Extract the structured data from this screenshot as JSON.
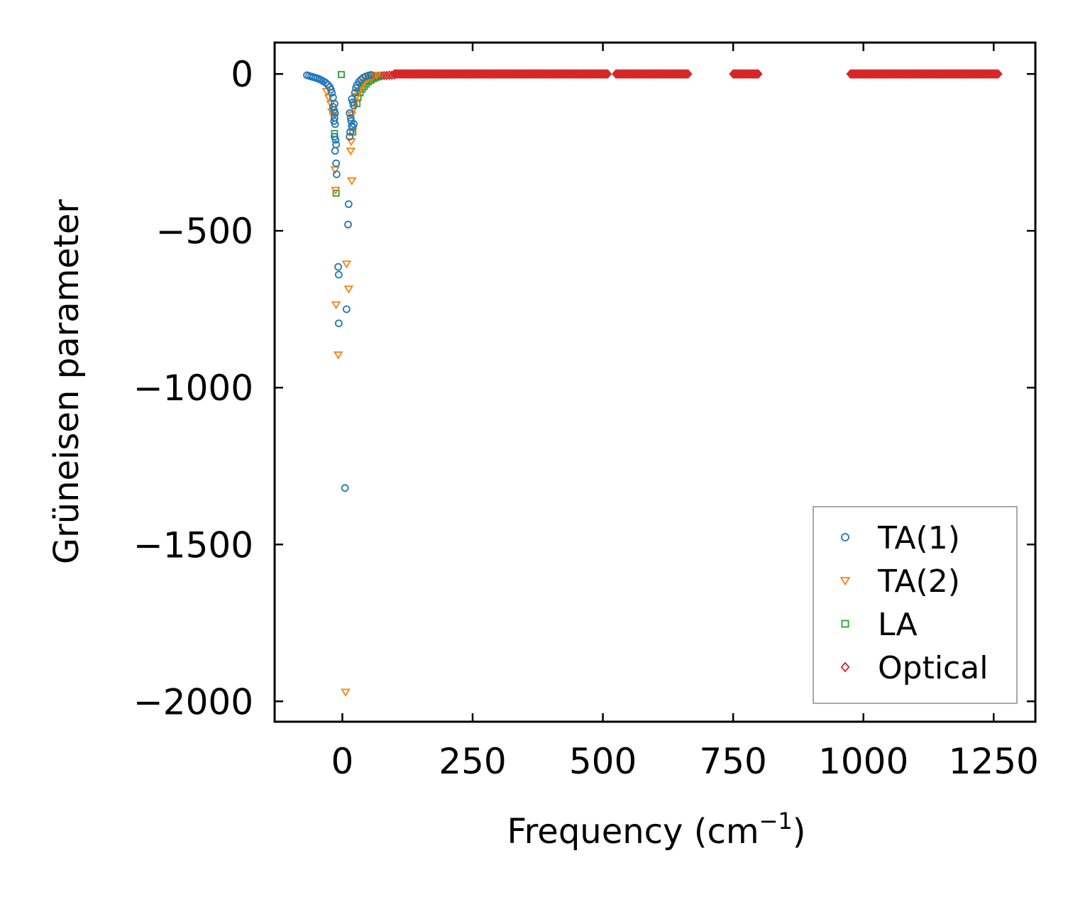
{
  "chart_data": {
    "type": "scatter",
    "xlabel": "Frequency (cm",
    "xlabel_sup": "−1",
    "xlabel_end": ")",
    "ylabel": "Grüneisen parameter",
    "xlim": [
      -130,
      1330
    ],
    "ylim": [
      -2065,
      100
    ],
    "xticks": [
      0,
      250,
      500,
      750,
      1000,
      1250
    ],
    "xtick_labels": [
      "0",
      "250",
      "500",
      "750",
      "1000",
      "1250"
    ],
    "yticks": [
      0,
      -500,
      -1000,
      -1500,
      -2000
    ],
    "ytick_labels": [
      "0",
      "−500",
      "−1000",
      "−1500",
      "−2000"
    ],
    "grid": false,
    "legend": {
      "position": "lower-right"
    },
    "series": [
      {
        "name": "TA(1)",
        "marker": "circle",
        "color": "#1f77b4",
        "points": [
          [
            -68,
            -4
          ],
          [
            -64,
            -6
          ],
          [
            -60,
            -8
          ],
          [
            -56,
            -10
          ],
          [
            -52,
            -12
          ],
          [
            -48,
            -14
          ],
          [
            -44,
            -17
          ],
          [
            -40,
            -20
          ],
          [
            -36,
            -24
          ],
          [
            -32,
            -28
          ],
          [
            -28,
            -34
          ],
          [
            -24,
            -42
          ],
          [
            -22,
            -50
          ],
          [
            -20,
            -60
          ],
          [
            -18,
            -75
          ],
          [
            -15,
            -95
          ],
          [
            -18,
            -105
          ],
          [
            -16,
            -115
          ],
          [
            -14,
            -125
          ],
          [
            -15,
            -140
          ],
          [
            -16,
            -150
          ],
          [
            -14,
            -160
          ],
          [
            -15,
            -200
          ],
          [
            -13,
            -210
          ],
          [
            -12,
            -225
          ],
          [
            -14,
            -245
          ],
          [
            -12,
            -285
          ],
          [
            -11,
            -320
          ],
          [
            -8,
            -615
          ],
          [
            -7,
            -640
          ],
          [
            -7,
            -795
          ],
          [
            8,
            -750
          ],
          [
            12,
            -415
          ],
          [
            11,
            -480
          ],
          [
            5,
            -1320
          ],
          [
            14,
            -125
          ],
          [
            16,
            -140
          ],
          [
            17,
            -150
          ],
          [
            18,
            -165
          ],
          [
            20,
            -170
          ],
          [
            22,
            -160
          ],
          [
            15,
            -185
          ],
          [
            14,
            -200
          ],
          [
            18,
            -80
          ],
          [
            20,
            -90
          ],
          [
            22,
            -100
          ],
          [
            24,
            -60
          ],
          [
            26,
            -45
          ],
          [
            28,
            -35
          ],
          [
            32,
            -25
          ],
          [
            36,
            -18
          ],
          [
            40,
            -12
          ],
          [
            45,
            -8
          ],
          [
            50,
            -5
          ],
          [
            55,
            -3
          ]
        ]
      },
      {
        "name": "TA(2)",
        "marker": "triangle",
        "color": "#ff7f0e",
        "points": [
          [
            -30,
            -55
          ],
          [
            -26,
            -75
          ],
          [
            -22,
            -95
          ],
          [
            -20,
            -120
          ],
          [
            -17,
            -135
          ],
          [
            -14,
            -305
          ],
          [
            -13,
            -370
          ],
          [
            -12,
            -735
          ],
          [
            -8,
            -895
          ],
          [
            8,
            -605
          ],
          [
            12,
            -685
          ],
          [
            6,
            -1970
          ],
          [
            18,
            -340
          ],
          [
            16,
            -245
          ],
          [
            17,
            -215
          ],
          [
            19,
            -185
          ],
          [
            18,
            -130
          ],
          [
            22,
            -110
          ],
          [
            25,
            -90
          ],
          [
            28,
            -70
          ],
          [
            32,
            -55
          ],
          [
            36,
            -40
          ],
          [
            40,
            -30
          ],
          [
            45,
            -20
          ],
          [
            50,
            -12
          ],
          [
            55,
            -8
          ],
          [
            60,
            -5
          ],
          [
            66,
            -3
          ]
        ]
      },
      {
        "name": "LA",
        "marker": "square",
        "color": "#2ca02c",
        "points": [
          [
            -15,
            -190
          ],
          [
            -12,
            -380
          ],
          [
            20,
            -185
          ],
          [
            28,
            -95
          ],
          [
            30,
            -75
          ],
          [
            34,
            -60
          ],
          [
            38,
            -48
          ],
          [
            42,
            -40
          ],
          [
            46,
            -32
          ],
          [
            50,
            -25
          ],
          [
            55,
            -20
          ],
          [
            60,
            -15
          ],
          [
            65,
            -11
          ],
          [
            70,
            -8
          ],
          [
            -2,
            -2
          ]
        ]
      },
      {
        "name": "Optical",
        "marker": "diamond",
        "color": "#d62728",
        "points": [
          [
            50,
            -12
          ],
          [
            55,
            -10
          ],
          [
            60,
            -9
          ],
          [
            65,
            -8
          ],
          [
            70,
            -7
          ],
          [
            75,
            -6
          ],
          [
            80,
            -5
          ],
          [
            85,
            -5
          ],
          [
            90,
            -4
          ],
          [
            95,
            -4
          ],
          [
            100,
            -3
          ]
        ],
        "bands": [
          [
            100,
            510
          ],
          [
            525,
            665
          ],
          [
            750,
            800
          ],
          [
            975,
            1260
          ]
        ]
      }
    ]
  }
}
